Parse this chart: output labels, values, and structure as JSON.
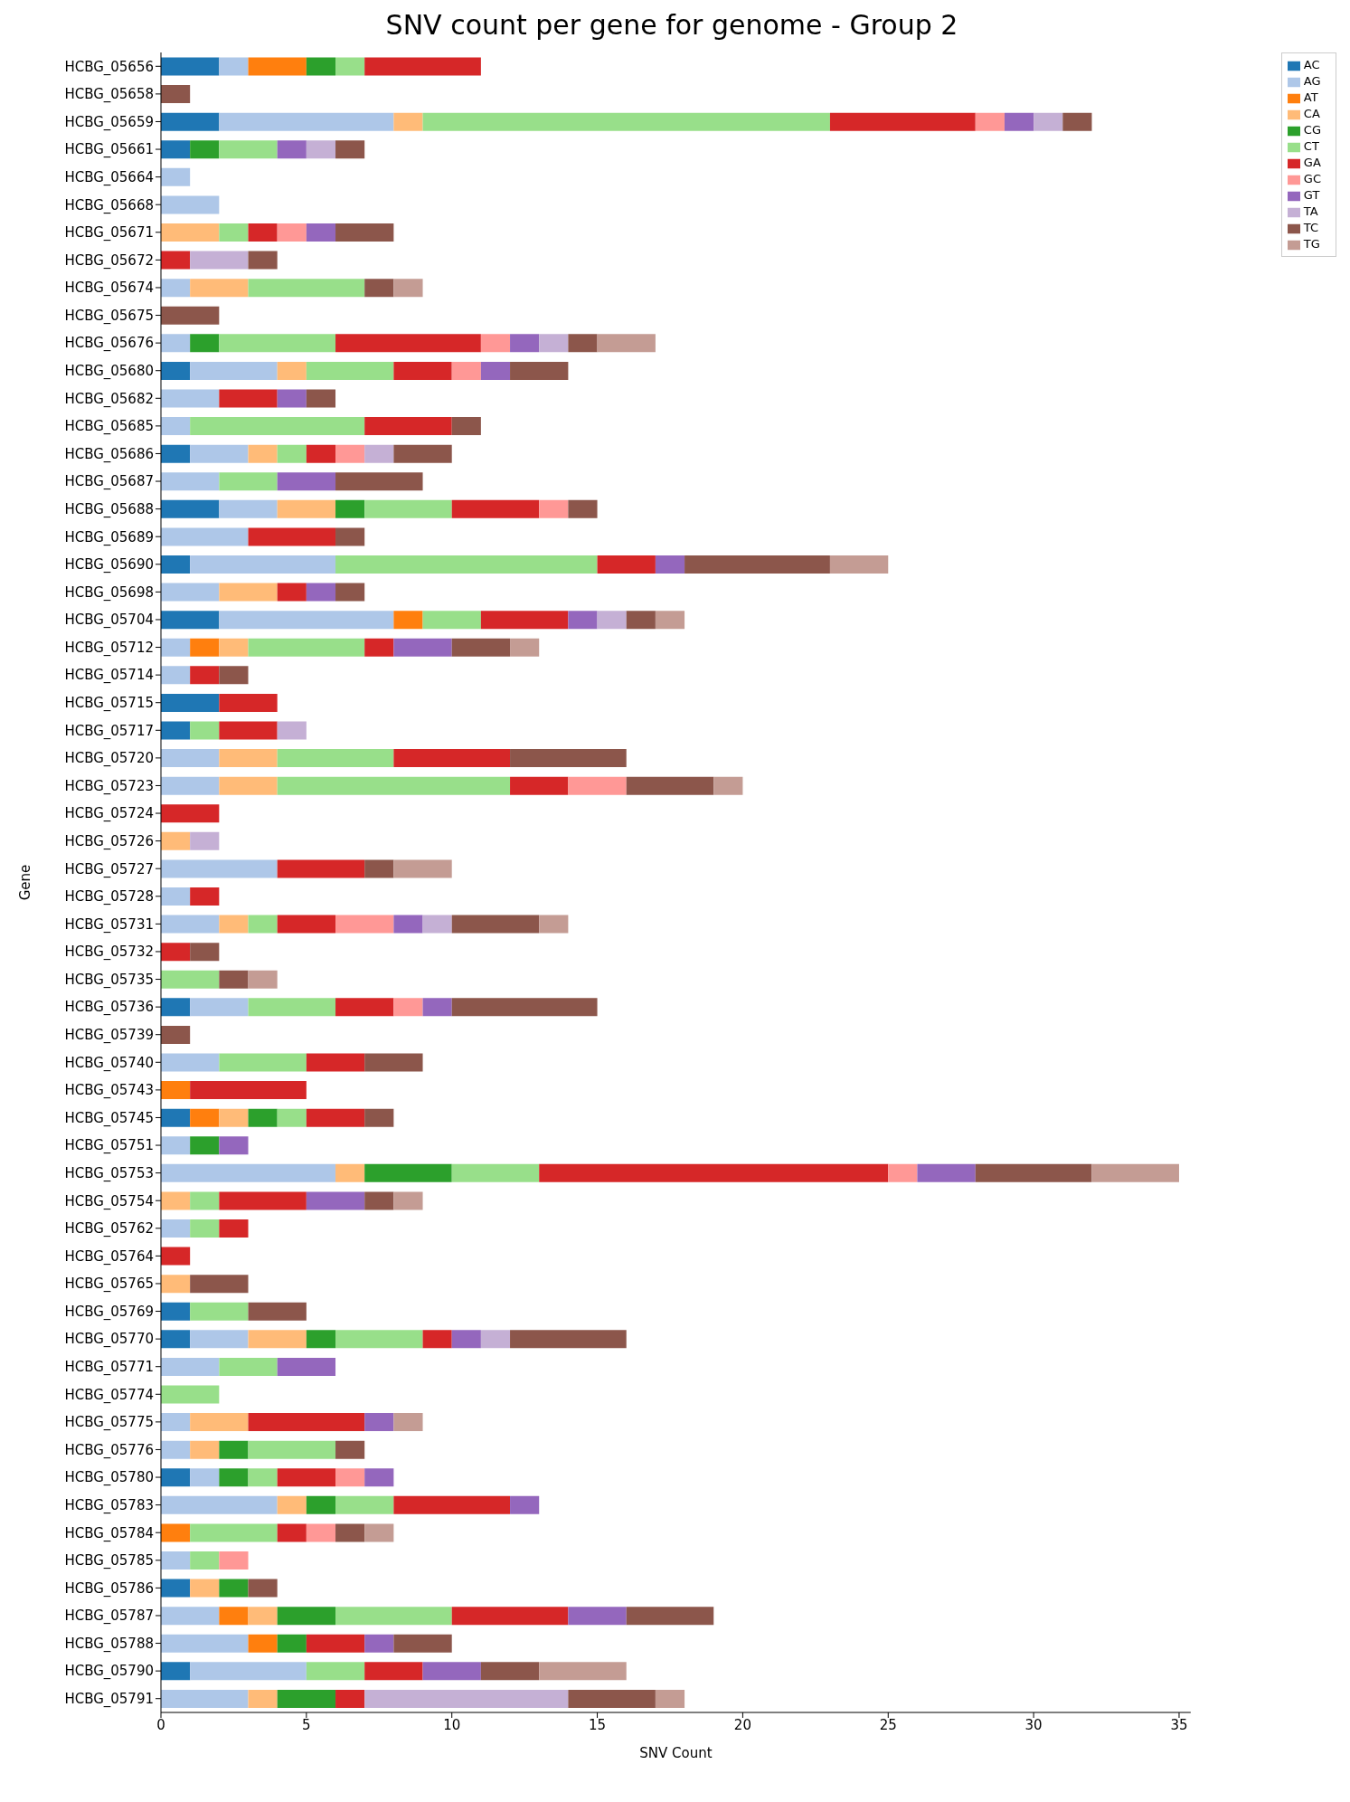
{
  "chart_data": {
    "type": "bar",
    "orientation": "horizontal",
    "stacked": true,
    "title": "SNV count per gene for genome - Group 2",
    "xlabel": "SNV Count",
    "ylabel": "Gene",
    "legend": "top right",
    "categories": [
      "HCBG_05656",
      "HCBG_05658",
      "HCBG_05659",
      "HCBG_05661",
      "HCBG_05664",
      "HCBG_05668",
      "HCBG_05671",
      "HCBG_05672",
      "HCBG_05674",
      "HCBG_05675",
      "HCBG_05676",
      "HCBG_05680",
      "HCBG_05682",
      "HCBG_05685",
      "HCBG_05686",
      "HCBG_05687",
      "HCBG_05688",
      "HCBG_05689",
      "HCBG_05690",
      "HCBG_05698",
      "HCBG_05704",
      "HCBG_05712",
      "HCBG_05714",
      "HCBG_05715",
      "HCBG_05717",
      "HCBG_05720",
      "HCBG_05723",
      "HCBG_05724",
      "HCBG_05726",
      "HCBG_05727",
      "HCBG_05728",
      "HCBG_05731",
      "HCBG_05732",
      "HCBG_05735",
      "HCBG_05736",
      "HCBG_05739",
      "HCBG_05740",
      "HCBG_05743",
      "HCBG_05745",
      "HCBG_05751",
      "HCBG_05753",
      "HCBG_05754",
      "HCBG_05762",
      "HCBG_05764",
      "HCBG_05765",
      "HCBG_05769",
      "HCBG_05770",
      "HCBG_05771",
      "HCBG_05774",
      "HCBG_05775",
      "HCBG_05776",
      "HCBG_05780",
      "HCBG_05783",
      "HCBG_05784",
      "HCBG_05785",
      "HCBG_05786",
      "HCBG_05787",
      "HCBG_05788",
      "HCBG_05790",
      "HCBG_05791"
    ],
    "xlim": [
      0,
      35.4
    ],
    "xticks": [
      0,
      5,
      10,
      15,
      20,
      25,
      30,
      35
    ],
    "series": [
      {
        "name": "AC",
        "color": "#1f77b4",
        "values": [
          2,
          null,
          2,
          1,
          null,
          null,
          null,
          null,
          null,
          null,
          null,
          1,
          null,
          null,
          1,
          null,
          2,
          null,
          1,
          null,
          2,
          null,
          null,
          2,
          1,
          null,
          null,
          null,
          null,
          null,
          null,
          null,
          null,
          null,
          1,
          null,
          null,
          null,
          1,
          null,
          null,
          null,
          null,
          null,
          null,
          1,
          1,
          null,
          null,
          null,
          null,
          1,
          null,
          null,
          null,
          1,
          null,
          null,
          1,
          null
        ]
      },
      {
        "name": "AG",
        "color": "#aec7e8",
        "values": [
          1,
          null,
          6,
          null,
          1,
          2,
          null,
          null,
          1,
          null,
          1,
          3,
          2,
          1,
          2,
          2,
          2,
          3,
          5,
          2,
          6,
          1,
          1,
          null,
          null,
          2,
          2,
          null,
          null,
          4,
          1,
          2,
          null,
          null,
          2,
          null,
          2,
          null,
          null,
          1,
          6,
          null,
          1,
          null,
          null,
          null,
          2,
          2,
          null,
          1,
          1,
          1,
          4,
          null,
          1,
          null,
          2,
          3,
          4,
          3
        ]
      },
      {
        "name": "AT",
        "color": "#ff7f0e",
        "values": [
          2,
          null,
          null,
          null,
          null,
          null,
          null,
          null,
          null,
          null,
          null,
          null,
          null,
          null,
          null,
          null,
          null,
          null,
          null,
          null,
          1,
          1,
          null,
          null,
          null,
          null,
          null,
          null,
          null,
          null,
          null,
          null,
          null,
          null,
          null,
          null,
          null,
          1,
          1,
          null,
          null,
          null,
          null,
          null,
          null,
          null,
          null,
          null,
          null,
          null,
          null,
          null,
          null,
          1,
          null,
          null,
          1,
          1,
          null,
          null
        ]
      },
      {
        "name": "CA",
        "color": "#ffbb78",
        "values": [
          null,
          null,
          1,
          null,
          null,
          null,
          2,
          null,
          2,
          null,
          null,
          1,
          null,
          null,
          1,
          null,
          2,
          null,
          null,
          2,
          null,
          1,
          null,
          null,
          null,
          2,
          2,
          null,
          1,
          null,
          null,
          1,
          null,
          null,
          null,
          null,
          null,
          null,
          1,
          null,
          1,
          1,
          null,
          null,
          1,
          null,
          2,
          null,
          null,
          2,
          1,
          null,
          1,
          null,
          null,
          1,
          1,
          null,
          null,
          1
        ]
      },
      {
        "name": "CG",
        "color": "#2ca02c",
        "values": [
          1,
          null,
          null,
          1,
          null,
          null,
          null,
          null,
          null,
          null,
          1,
          null,
          null,
          null,
          null,
          null,
          1,
          null,
          null,
          null,
          null,
          null,
          null,
          null,
          null,
          null,
          null,
          null,
          null,
          null,
          null,
          null,
          null,
          null,
          null,
          null,
          null,
          null,
          1,
          1,
          3,
          null,
          null,
          null,
          null,
          null,
          1,
          null,
          null,
          null,
          1,
          1,
          1,
          null,
          null,
          1,
          2,
          1,
          null,
          2
        ]
      },
      {
        "name": "CT",
        "color": "#98df8a",
        "values": [
          1,
          null,
          14,
          2,
          null,
          null,
          1,
          null,
          4,
          null,
          4,
          3,
          null,
          6,
          1,
          2,
          3,
          null,
          9,
          null,
          2,
          4,
          null,
          null,
          1,
          4,
          8,
          null,
          null,
          null,
          null,
          1,
          null,
          2,
          3,
          null,
          3,
          null,
          1,
          null,
          3,
          1,
          1,
          null,
          null,
          2,
          3,
          2,
          2,
          null,
          3,
          1,
          2,
          3,
          1,
          null,
          4,
          null,
          2,
          null
        ]
      },
      {
        "name": "GA",
        "color": "#d62728",
        "values": [
          4,
          null,
          5,
          null,
          null,
          null,
          1,
          1,
          null,
          null,
          5,
          2,
          2,
          3,
          1,
          null,
          3,
          3,
          2,
          1,
          3,
          1,
          1,
          2,
          2,
          4,
          2,
          2,
          null,
          3,
          1,
          2,
          1,
          null,
          2,
          null,
          2,
          4,
          2,
          null,
          12,
          3,
          1,
          1,
          null,
          null,
          1,
          null,
          null,
          4,
          null,
          2,
          4,
          1,
          null,
          null,
          4,
          2,
          2,
          1
        ]
      },
      {
        "name": "GC",
        "color": "#ff9896",
        "values": [
          null,
          null,
          1,
          null,
          null,
          null,
          1,
          null,
          null,
          null,
          1,
          1,
          null,
          null,
          1,
          null,
          1,
          null,
          null,
          null,
          null,
          null,
          null,
          null,
          null,
          null,
          2,
          null,
          null,
          null,
          null,
          2,
          null,
          null,
          1,
          null,
          null,
          null,
          null,
          null,
          1,
          null,
          null,
          null,
          null,
          null,
          null,
          null,
          null,
          null,
          null,
          1,
          null,
          1,
          1,
          null,
          null,
          null,
          null,
          null
        ]
      },
      {
        "name": "GT",
        "color": "#9467bd",
        "values": [
          null,
          null,
          1,
          1,
          null,
          null,
          1,
          null,
          null,
          null,
          1,
          1,
          1,
          null,
          null,
          2,
          null,
          null,
          1,
          1,
          1,
          2,
          null,
          null,
          null,
          null,
          null,
          null,
          null,
          null,
          null,
          1,
          null,
          null,
          1,
          null,
          null,
          null,
          null,
          1,
          2,
          2,
          null,
          null,
          null,
          null,
          1,
          2,
          null,
          1,
          null,
          1,
          1,
          null,
          null,
          null,
          2,
          1,
          2,
          null
        ]
      },
      {
        "name": "TA",
        "color": "#c5b0d5",
        "values": [
          null,
          null,
          1,
          1,
          null,
          null,
          null,
          2,
          null,
          null,
          1,
          null,
          null,
          null,
          1,
          null,
          null,
          null,
          null,
          null,
          1,
          null,
          null,
          null,
          1,
          null,
          null,
          null,
          1,
          null,
          null,
          1,
          null,
          null,
          null,
          null,
          null,
          null,
          null,
          null,
          null,
          null,
          null,
          null,
          null,
          null,
          1,
          null,
          null,
          null,
          null,
          null,
          null,
          null,
          null,
          null,
          null,
          null,
          null,
          7
        ]
      },
      {
        "name": "TC",
        "color": "#8c564b",
        "values": [
          null,
          1,
          1,
          1,
          null,
          null,
          2,
          1,
          1,
          2,
          1,
          2,
          1,
          1,
          2,
          3,
          1,
          1,
          5,
          1,
          1,
          2,
          1,
          null,
          null,
          4,
          3,
          null,
          null,
          1,
          null,
          3,
          1,
          1,
          5,
          1,
          2,
          null,
          1,
          null,
          4,
          1,
          null,
          null,
          2,
          2,
          4,
          null,
          null,
          null,
          1,
          null,
          null,
          1,
          null,
          1,
          3,
          2,
          2,
          3
        ]
      },
      {
        "name": "TG",
        "color": "#c49c94",
        "values": [
          null,
          null,
          null,
          null,
          null,
          null,
          null,
          null,
          1,
          null,
          2,
          null,
          null,
          null,
          null,
          null,
          null,
          null,
          2,
          null,
          1,
          1,
          null,
          null,
          null,
          null,
          1,
          null,
          null,
          2,
          null,
          1,
          null,
          1,
          null,
          null,
          null,
          null,
          null,
          null,
          3,
          1,
          null,
          null,
          null,
          null,
          null,
          null,
          null,
          1,
          null,
          null,
          null,
          1,
          null,
          null,
          null,
          null,
          3,
          1
        ]
      }
    ]
  }
}
